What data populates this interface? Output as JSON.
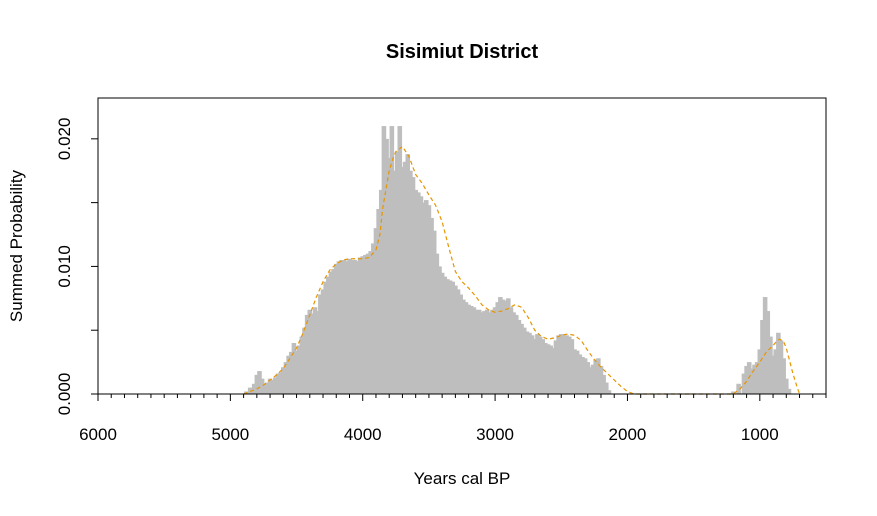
{
  "chart_data": {
    "type": "area",
    "title": "Sisimiut District",
    "xlabel": "Years cal BP",
    "ylabel": "Summed Probability",
    "xlim": [
      6000,
      500
    ],
    "ylim": [
      0,
      0.0232
    ],
    "x_reversed": true,
    "x_ticks": [
      6000,
      5000,
      4000,
      3000,
      2000,
      1000
    ],
    "x_tick_labels": [
      "6000",
      "5000",
      "4000",
      "3000",
      "2000",
      "1000"
    ],
    "x_minor_tick_step": 100,
    "y_ticks": [
      0,
      0.005,
      0.01,
      0.015,
      0.02
    ],
    "y_tick_labels": [
      "0.000",
      "",
      "0.010",
      "",
      "0.020"
    ],
    "grid": false,
    "legend": "none",
    "colors": {
      "spd_fill": "#bebebe",
      "smooth_line": "#e69500",
      "frame": "#000000"
    },
    "series": [
      {
        "kind": "spd-histogram",
        "x": [
          4880,
          4850,
          4820,
          4800,
          4780,
          4760,
          4740,
          4720,
          4700,
          4680,
          4660,
          4640,
          4620,
          4600,
          4580,
          4560,
          4540,
          4520,
          4500,
          4480,
          4460,
          4440,
          4420,
          4400,
          4380,
          4360,
          4340,
          4320,
          4300,
          4280,
          4260,
          4240,
          4220,
          4200,
          4180,
          4160,
          4140,
          4120,
          4100,
          4080,
          4060,
          4040,
          4020,
          4000,
          3980,
          3960,
          3940,
          3920,
          3900,
          3880,
          3860,
          3840,
          3820,
          3800,
          3780,
          3760,
          3740,
          3720,
          3700,
          3680,
          3660,
          3640,
          3620,
          3600,
          3580,
          3560,
          3540,
          3520,
          3500,
          3480,
          3460,
          3440,
          3420,
          3400,
          3380,
          3360,
          3340,
          3320,
          3300,
          3280,
          3260,
          3240,
          3220,
          3200,
          3180,
          3160,
          3140,
          3120,
          3100,
          3080,
          3060,
          3040,
          3020,
          3000,
          2980,
          2960,
          2940,
          2920,
          2900,
          2880,
          2860,
          2840,
          2820,
          2800,
          2780,
          2760,
          2740,
          2720,
          2700,
          2680,
          2660,
          2640,
          2620,
          2600,
          2580,
          2560,
          2540,
          2520,
          2500,
          2480,
          2460,
          2440,
          2420,
          2400,
          2380,
          2360,
          2340,
          2320,
          2300,
          2280,
          2260,
          2240,
          2220,
          2200,
          2180,
          2160,
          2140,
          1200,
          1160,
          1120,
          1100,
          1080,
          1060,
          1040,
          1020,
          1000,
          980,
          960,
          940,
          920,
          900,
          880,
          860,
          840,
          820,
          800,
          780,
          760
        ],
        "y": [
          0.0002,
          0.0005,
          0.0008,
          0.0015,
          0.0018,
          0.0012,
          0.0008,
          0.0009,
          0.0012,
          0.0011,
          0.0013,
          0.0016,
          0.0017,
          0.0021,
          0.0025,
          0.003,
          0.0033,
          0.004,
          0.0034,
          0.0038,
          0.0045,
          0.0052,
          0.0062,
          0.0066,
          0.0063,
          0.0068,
          0.0065,
          0.0078,
          0.0082,
          0.0088,
          0.0092,
          0.0096,
          0.0098,
          0.0102,
          0.0104,
          0.0105,
          0.0105,
          0.0104,
          0.0106,
          0.0105,
          0.0105,
          0.0104,
          0.0107,
          0.0108,
          0.0109,
          0.011,
          0.0112,
          0.0118,
          0.013,
          0.0145,
          0.016,
          0.021,
          0.02,
          0.0185,
          0.021,
          0.0175,
          0.019,
          0.021,
          0.0178,
          0.0182,
          0.0188,
          0.0175,
          0.017,
          0.016,
          0.0158,
          0.0155,
          0.015,
          0.0152,
          0.0148,
          0.0138,
          0.0128,
          0.011,
          0.01,
          0.0095,
          0.0092,
          0.009,
          0.0089,
          0.0088,
          0.0085,
          0.0082,
          0.0078,
          0.0074,
          0.0072,
          0.007,
          0.0069,
          0.0068,
          0.0066,
          0.0066,
          0.0064,
          0.0065,
          0.0066,
          0.0064,
          0.0066,
          0.0068,
          0.0072,
          0.0076,
          0.0074,
          0.0073,
          0.0075,
          0.0068,
          0.0064,
          0.0062,
          0.0058,
          0.0055,
          0.0052,
          0.0049,
          0.0048,
          0.0046,
          0.0043,
          0.0047,
          0.0045,
          0.0043,
          0.004,
          0.0039,
          0.0038,
          0.0036,
          0.0042,
          0.0046,
          0.0047,
          0.0046,
          0.0046,
          0.0045,
          0.0043,
          0.0035,
          0.0034,
          0.0031,
          0.0029,
          0.0028,
          0.0025,
          0.0021,
          0.0023,
          0.0027,
          0.0028,
          0.0022,
          0.0015,
          0.0009,
          0.0003,
          0.0002,
          0.0008,
          0.0016,
          0.0022,
          0.0025,
          0.002,
          0.0023,
          0.0025,
          0.0035,
          0.0058,
          0.0076,
          0.0065,
          0.0045,
          0.003,
          0.0035,
          0.0048,
          0.0042,
          0.0028,
          0.0012,
          0.0004
        ]
      },
      {
        "kind": "smoothed-line",
        "x": [
          4900,
          4850,
          4800,
          4750,
          4700,
          4650,
          4600,
          4550,
          4500,
          4450,
          4400,
          4350,
          4300,
          4250,
          4200,
          4150,
          4100,
          4050,
          4000,
          3950,
          3900,
          3870,
          3850,
          3800,
          3770,
          3750,
          3700,
          3650,
          3600,
          3550,
          3500,
          3450,
          3400,
          3350,
          3300,
          3250,
          3200,
          3150,
          3100,
          3050,
          3000,
          2950,
          2900,
          2850,
          2800,
          2750,
          2700,
          2650,
          2600,
          2550,
          2500,
          2450,
          2400,
          2350,
          2300,
          2250,
          2200,
          2150,
          2100,
          2050,
          2000,
          1950,
          1950,
          1200,
          1150,
          1100,
          1050,
          1000,
          950,
          900,
          875,
          850,
          820,
          800,
          780,
          750,
          720,
          700
        ],
        "y": [
          0,
          0.0002,
          0.0004,
          0.0007,
          0.0011,
          0.0015,
          0.002,
          0.0028,
          0.0036,
          0.0048,
          0.0062,
          0.0076,
          0.0088,
          0.0097,
          0.0102,
          0.0105,
          0.0106,
          0.0106,
          0.0106,
          0.0107,
          0.0113,
          0.0125,
          0.0145,
          0.0175,
          0.0185,
          0.019,
          0.0194,
          0.0186,
          0.0172,
          0.0165,
          0.0156,
          0.0148,
          0.0135,
          0.0115,
          0.0096,
          0.0088,
          0.0083,
          0.0077,
          0.007,
          0.0066,
          0.0064,
          0.0065,
          0.0067,
          0.007,
          0.0068,
          0.006,
          0.005,
          0.0045,
          0.0043,
          0.0044,
          0.0046,
          0.0047,
          0.0046,
          0.0042,
          0.0034,
          0.0027,
          0.0021,
          0.0016,
          0.0011,
          0.0006,
          0.0002,
          0,
          0,
          0,
          0.0004,
          0.001,
          0.0018,
          0.0025,
          0.0033,
          0.0038,
          0.0041,
          0.0043,
          0.0041,
          0.0036,
          0.0028,
          0.0016,
          0.0006,
          0
        ]
      }
    ]
  }
}
